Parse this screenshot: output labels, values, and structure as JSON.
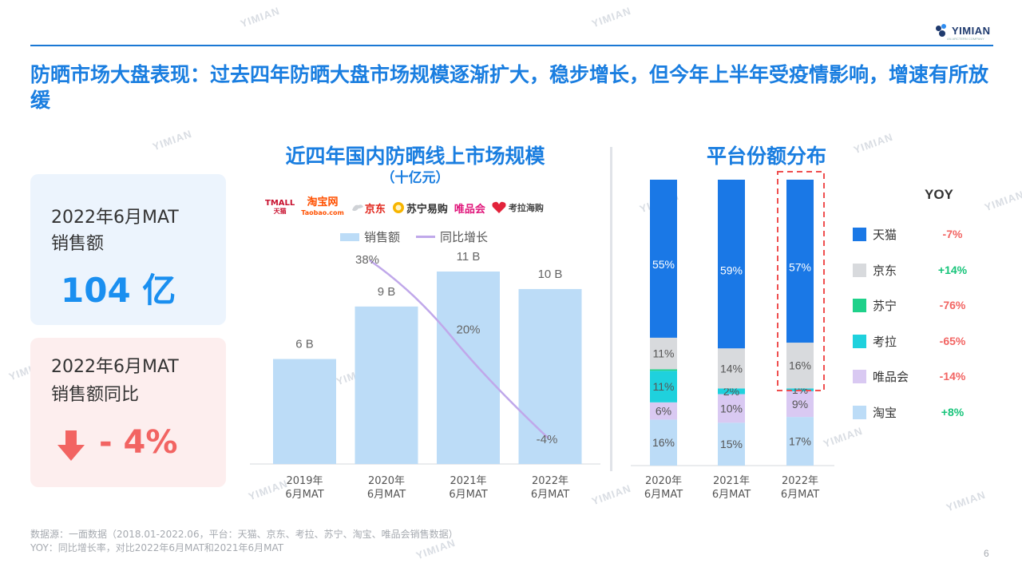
{
  "brand": {
    "logo_text": "YIMIAN",
    "logo_sub": "AN ARCTERN COMPANY",
    "watermark": "YIMIAN"
  },
  "headline": "防晒市场大盘表现：过去四年防晒大盘市场规模逐渐扩大，稳步增长，但今年上半年受疫情影响，增速有所放缓",
  "kpi": {
    "sales": {
      "label_line1": "2022年6月MAT",
      "label_line2": "销售额",
      "value": "104 亿"
    },
    "yoy": {
      "label_line1": "2022年6月MAT",
      "label_line2": "销售额同比",
      "value": "- 4%"
    }
  },
  "platform_brands": {
    "tmall_top": "TMALL",
    "tmall_bottom": "天猫",
    "taobao_top": "淘宝网",
    "taobao_bottom": "Taobao.com",
    "jd": "京东",
    "suning": "苏宁易购",
    "vip": "唯品会",
    "kaola": "考拉海购"
  },
  "colors": {
    "accent": "#1a7ee0",
    "bar": "#bcdcf7",
    "line": "#c0a8ea",
    "tmall": "#1a78e6",
    "jd": "#d8dadd",
    "suning": "#1fd18a",
    "kaola": "#1fd1dd",
    "vip": "#d9c9f2",
    "taobao": "#bcdcf7",
    "yoy_neg": "#f26462",
    "yoy_pos": "#17c47a",
    "highlight": "#ef4f4f"
  },
  "footer": {
    "source": "数据源：一面数据（2018.01-2022.06，平台：天猫、京东、考拉、苏宁、淘宝、唯品会销售数据）",
    "yoy_note": "YOY：同比增长率，对比2022年6月MAT和2021年6月MAT",
    "page": "6"
  },
  "chart_data": [
    {
      "type": "bar",
      "title": "近四年国内防晒线上市场规模",
      "subtitle": "（十亿元）",
      "categories": [
        "2019年\n6月MAT",
        "2020年\n6月MAT",
        "2021年\n6月MAT",
        "2022年\n6月MAT"
      ],
      "series": [
        {
          "name": "销售额",
          "values": [
            6,
            9,
            11,
            10
          ],
          "labels": [
            "6 B",
            "9 B",
            "11 B",
            "10 B"
          ]
        },
        {
          "name": "同比增长",
          "type": "line",
          "values": [
            null,
            38,
            20,
            -4
          ],
          "labels": [
            "",
            "38%",
            "20%",
            "-4%"
          ]
        }
      ],
      "legend": "top"
    },
    {
      "type": "bar",
      "stacked": true,
      "title": "平台份额分布",
      "categories": [
        "2020年\n6月MAT",
        "2021年\n6月MAT",
        "2022年\n6月MAT"
      ],
      "series": [
        {
          "name": "淘宝",
          "values": [
            16,
            15,
            17
          ],
          "labels": [
            "16%",
            "15%",
            "17%"
          ],
          "yoy": "+8%"
        },
        {
          "name": "唯品会",
          "values": [
            6,
            10,
            9
          ],
          "labels": [
            "6%",
            "10%",
            "9%"
          ],
          "yoy": "-14%"
        },
        {
          "name": "考拉",
          "values": [
            11,
            2,
            1
          ],
          "labels": [
            "11%",
            "2%",
            "1%"
          ],
          "yoy": "-65%"
        },
        {
          "name": "苏宁",
          "values": [
            0.5,
            0,
            0
          ],
          "labels": [
            "",
            "",
            ""
          ],
          "yoy": "-76%"
        },
        {
          "name": "京东",
          "values": [
            11,
            14,
            16
          ],
          "labels": [
            "11%",
            "14%",
            "16%"
          ],
          "yoy": "+14%"
        },
        {
          "name": "天猫",
          "values": [
            55,
            59,
            57
          ],
          "labels": [
            "55%",
            "59%",
            "57%"
          ],
          "yoy": "-7%"
        }
      ],
      "legend_header": "YOY",
      "legend_order": [
        "天猫",
        "京东",
        "苏宁",
        "考拉",
        "唯品会",
        "淘宝"
      ],
      "highlight": "2022年\n6月MAT",
      "legend": "right"
    }
  ]
}
